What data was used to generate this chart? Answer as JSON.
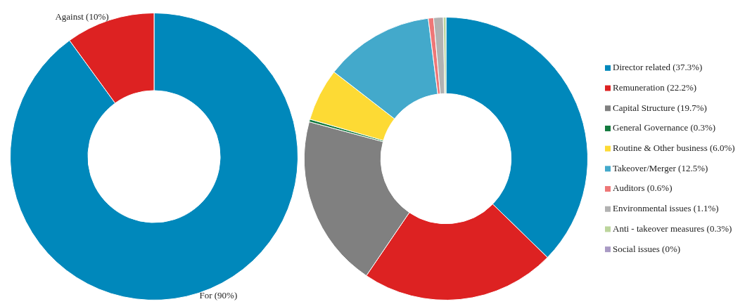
{
  "chart_data": [
    {
      "type": "donut",
      "categories": [
        "For (90%)",
        "Against (10%)"
      ],
      "values": [
        90,
        10
      ],
      "colors": [
        "#0088bb",
        "#dd2222"
      ]
    },
    {
      "type": "donut",
      "categories": [
        "Director related (37.3%)",
        "Remuneration (22.2%)",
        "Capital Structure (19.7%)",
        "General Governance (0.3%)",
        "Routine & Other business (6.0%)",
        "Takeover/Merger (12.5%)",
        "Auditors (0.6%)",
        "Environmental issues (1.1%)",
        "Anti - takeover measures (0.3%)",
        "Social issues (0%)"
      ],
      "values": [
        37.3,
        22.2,
        19.7,
        0.3,
        6.0,
        12.5,
        0.6,
        1.1,
        0.3,
        0
      ],
      "colors": [
        "#0088bb",
        "#dd2222",
        "#808080",
        "#137a3e",
        "#fdda34",
        "#43a9cb",
        "#ee7777",
        "#b2b2b2",
        "#bcd59c",
        "#a99ac4"
      ],
      "legend": "right"
    }
  ]
}
